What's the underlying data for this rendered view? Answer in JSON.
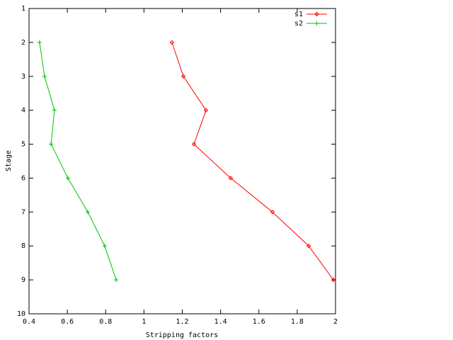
{
  "chart_data": {
    "type": "line",
    "x_label": "Stripping factors",
    "y_label": "Stage",
    "xlim": [
      0.4,
      2
    ],
    "xticks": [
      0.4,
      0.6,
      0.8,
      1,
      1.2,
      1.4,
      1.6,
      1.8,
      2
    ],
    "ylim": [
      1,
      10
    ],
    "yticks": [
      1,
      2,
      3,
      4,
      5,
      6,
      7,
      8,
      9,
      10
    ],
    "y_inverted": true,
    "legend": "top-right",
    "series": [
      {
        "name": "s1",
        "color": "#ff0000",
        "marker": "diamond",
        "x": [
          1.146,
          1.206,
          1.324,
          1.261,
          1.453,
          1.671,
          1.86,
          1.989
        ],
        "y": [
          2,
          3,
          4,
          5,
          6,
          7,
          8,
          9
        ]
      },
      {
        "name": "s2",
        "color": "#00c000",
        "marker": "plus",
        "x": [
          0.455,
          0.481,
          0.533,
          0.515,
          0.603,
          0.707,
          0.795,
          0.855
        ],
        "y": [
          2,
          3,
          4,
          5,
          6,
          7,
          8,
          9
        ]
      }
    ]
  }
}
